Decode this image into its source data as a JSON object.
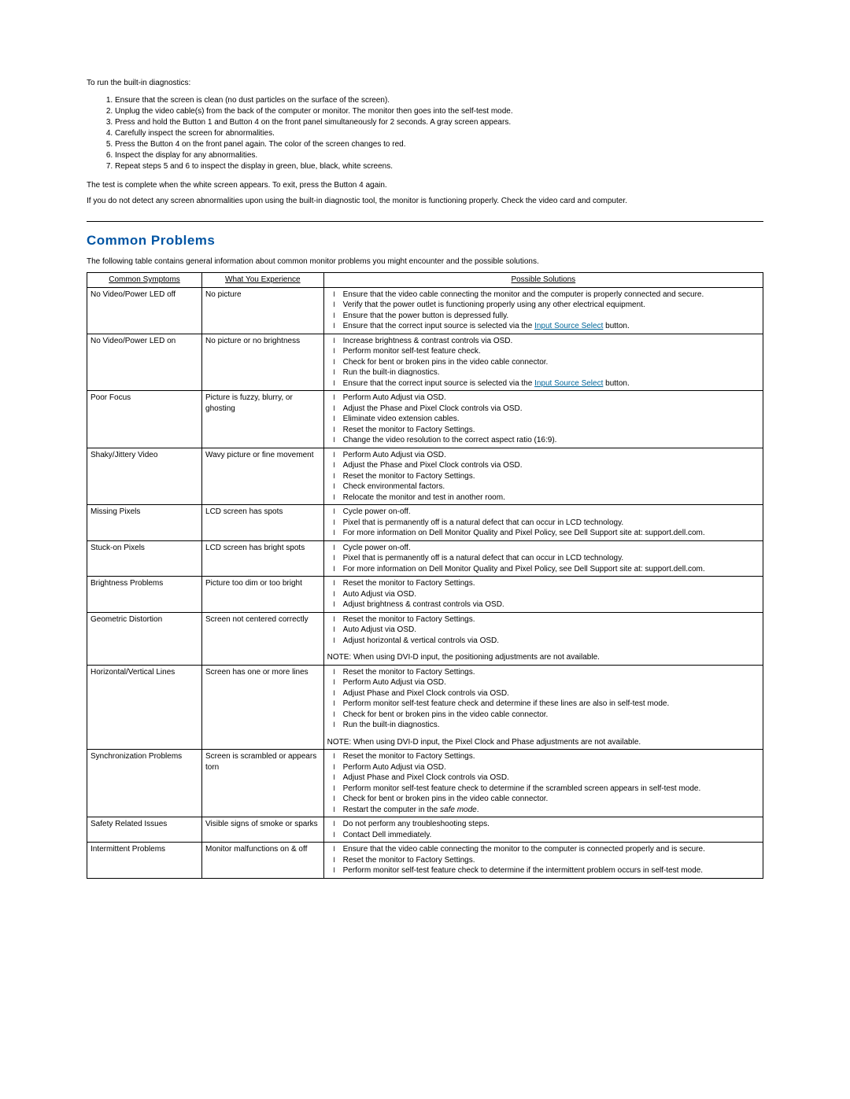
{
  "intro": "To run the built-in diagnostics:",
  "steps": [
    "Ensure that the screen is clean (no dust particles on the surface of the screen).",
    "Unplug the video cable(s) from the back of the computer or monitor. The monitor then goes into the self-test mode.",
    "Press and hold the Button 1 and Button 4 on the front panel simultaneously for 2 seconds. A gray screen appears.",
    "Carefully inspect the screen for abnormalities.",
    "Press the Button 4 on the front panel again. The color of the screen changes to red.",
    "Inspect the display for any abnormalities.",
    "Repeat steps 5 and 6 to inspect the display in green, blue, black, white screens."
  ],
  "afterSteps1": "The test is complete when the white screen appears. To exit, press the Button 4 again.",
  "afterSteps2": "If you do not detect any screen abnormalities upon using the built-in diagnostic tool, the monitor is functioning properly. Check the video card and computer.",
  "sectionTitle": "Common Problems",
  "sectionIntro": "The following table contains general information about common monitor problems you might encounter and the possible solutions.",
  "headers": {
    "symptoms": "Common Symptoms",
    "experience": "What You Experience",
    "solutions": "Possible Solutions"
  },
  "linkText": "Input Source Select",
  "rowCount": 12,
  "rows": {
    "0": {
      "symptom": "No Video/Power LED off",
      "experience": "No picture",
      "solutions": [
        "Ensure that the video cable connecting the monitor and the computer is properly connected and secure.",
        "Verify that the power outlet is functioning properly using any other electrical equipment.",
        "Ensure that the power button is depressed fully.",
        "Ensure that the correct input source is selected via the [[LINK]] button."
      ]
    },
    "1": {
      "symptom": "No Video/Power LED on",
      "experience": "No picture or no brightness",
      "solutions": [
        "Increase brightness & contrast controls via OSD.",
        "Perform monitor self-test feature check.",
        "Check for bent or broken pins in the video cable connector.",
        "Run the built-in diagnostics.",
        "Ensure that the correct input source is selected via the [[LINK]] button."
      ]
    },
    "2": {
      "symptom": "Poor Focus",
      "experience": "Picture is fuzzy, blurry, or ghosting",
      "solutions": [
        "Perform Auto Adjust via OSD.",
        "Adjust the Phase and Pixel Clock controls via OSD.",
        "Eliminate video extension cables.",
        "Reset the monitor to Factory Settings.",
        "Change the video resolution to the correct aspect ratio (16:9)."
      ]
    },
    "3": {
      "symptom": "Shaky/Jittery Video",
      "experience": "Wavy picture or fine movement",
      "solutions": [
        "Perform Auto Adjust via OSD.",
        "Adjust the Phase and Pixel Clock controls via OSD.",
        "Reset the monitor to Factory Settings.",
        "Check environmental factors.",
        "Relocate the monitor and test in another room."
      ]
    },
    "4": {
      "symptom": "Missing Pixels",
      "experience": "LCD screen has spots",
      "solutions": [
        "Cycle power on-off.",
        "Pixel that is permanently off is a natural defect that can occur in LCD technology.",
        "For more information on Dell Monitor Quality and Pixel Policy, see Dell Support site at: support.dell.com."
      ]
    },
    "5": {
      "symptom": "Stuck-on Pixels",
      "experience": "LCD screen has bright spots",
      "solutions": [
        "Cycle power on-off.",
        "Pixel that is permanently off is a natural defect that can occur in LCD technology.",
        "For more information on Dell Monitor Quality and Pixel Policy, see Dell Support site at: support.dell.com."
      ]
    },
    "6": {
      "symptom": "Brightness Problems",
      "experience": "Picture too dim or too bright",
      "solutions": [
        "Reset the monitor to Factory Settings.",
        "Auto Adjust via OSD.",
        "Adjust brightness & contrast controls via OSD."
      ]
    },
    "7": {
      "symptom": "Geometric Distortion",
      "experience": "Screen not centered correctly",
      "solutions": [
        "Reset the monitor to Factory Settings.",
        "Auto Adjust via OSD.",
        "Adjust horizontal & vertical controls via OSD."
      ],
      "note": "NOTE: When using DVI-D input, the positioning adjustments are not available."
    },
    "8": {
      "symptom": "Horizontal/Vertical Lines",
      "experience": "Screen has one or more lines",
      "solutions": [
        "Reset the monitor to Factory Settings.",
        "Perform Auto Adjust via OSD.",
        "Adjust Phase and Pixel Clock controls via OSD.",
        "Perform monitor self-test feature check and determine if these lines are also in self-test mode.",
        "Check for bent or broken pins in the video cable connector.",
        "Run the built-in diagnostics."
      ],
      "note": "NOTE: When using DVI-D input, the Pixel Clock and Phase adjustments are not available."
    },
    "9": {
      "symptom": "Synchronization Problems",
      "experience": "Screen is scrambled or appears torn",
      "solutions": [
        "Reset the monitor to Factory Settings.",
        "Perform Auto Adjust via OSD.",
        "Adjust Phase and Pixel Clock controls via OSD.",
        "Perform monitor self-test feature check to determine if the scrambled screen appears in self-test mode.",
        "Check for bent or broken pins in the video cable connector.",
        "Restart the computer in the ((safe mode))."
      ]
    },
    "10": {
      "symptom": "Safety Related Issues",
      "experience": "Visible signs of smoke or sparks",
      "solutions": [
        "Do not perform any troubleshooting steps.",
        "Contact Dell immediately."
      ]
    },
    "11": {
      "symptom": "Intermittent Problems",
      "experience": "Monitor malfunctions on & off",
      "solutions": [
        "Ensure that the video cable connecting the monitor to the computer is connected properly and is secure.",
        "Reset the monitor to Factory Settings.",
        "Perform monitor self-test feature check to determine if the intermittent problem occurs in self-test mode."
      ]
    }
  }
}
